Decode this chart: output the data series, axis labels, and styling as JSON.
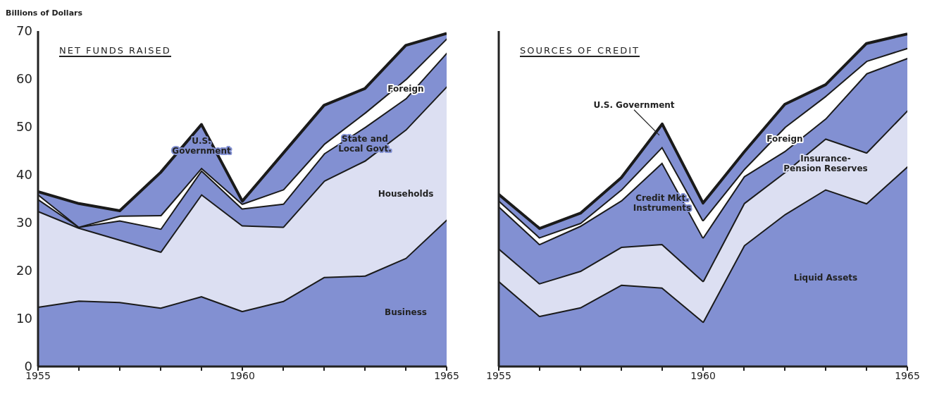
{
  "chart_data": [
    {
      "type": "area",
      "stacked": true,
      "title": "NET FUNDS RAISED",
      "ylabel": "Billions of Dollars",
      "x": [
        1955,
        1956,
        1957,
        1958,
        1959,
        1960,
        1961,
        1962,
        1963,
        1964,
        1965
      ],
      "xlim": [
        1955,
        1965
      ],
      "xticks": [
        1955,
        {
          "value": 1956,
          "label": null
        },
        {
          "value": 1957,
          "label": null
        },
        {
          "value": 1958,
          "label": null
        },
        {
          "value": 1959,
          "label": null
        },
        1960,
        {
          "value": 1961,
          "label": null
        },
        {
          "value": 1962,
          "label": null
        },
        {
          "value": 1963,
          "label": null
        },
        {
          "value": 1964,
          "label": null
        },
        1965
      ],
      "ylim": [
        0,
        70
      ],
      "yticks": [
        0,
        10,
        20,
        30,
        40,
        50,
        60,
        70
      ],
      "series": [
        {
          "name": "Business",
          "color": "#8290d2",
          "values": [
            12.5,
            13.8,
            13.5,
            12.3,
            14.7,
            11.6,
            13.7,
            18.7,
            19.0,
            22.7,
            30.7
          ]
        },
        {
          "name": "Households",
          "color": "#dcdff2",
          "values": [
            20,
            15.2,
            13,
            11.7,
            21.3,
            17.9,
            15.5,
            20.1,
            24,
            26.8,
            27.8
          ]
        },
        {
          "name": "State and Local Govt.",
          "color": "#8290d2",
          "values": [
            2.5,
            0.2,
            4,
            4.8,
            5,
            3.5,
            4.8,
            5.7,
            7,
            6.5,
            7
          ]
        },
        {
          "name": "Foreign",
          "color": "#ffffff",
          "values": [
            1,
            0,
            1,
            2.8,
            0.5,
            1,
            3,
            2,
            3,
            4,
            3
          ]
        },
        {
          "name": "U.S. Government",
          "color": "#8290d2",
          "values": [
            0.5,
            4.8,
            1,
            8.9,
            9,
            0.5,
            7.5,
            8,
            5,
            7,
            1
          ]
        }
      ]
    },
    {
      "type": "area",
      "stacked": true,
      "title": "SOURCES OF CREDIT",
      "tick_labels": "x",
      "x": [
        1955,
        1956,
        1957,
        1958,
        1959,
        1960,
        1961,
        1962,
        1963,
        1964,
        1965
      ],
      "xlim": [
        1955,
        1965
      ],
      "xticks": [
        1955,
        {
          "value": 1956,
          "label": null
        },
        {
          "value": 1957,
          "label": null
        },
        {
          "value": 1958,
          "label": null
        },
        {
          "value": 1959,
          "label": null
        },
        1960,
        {
          "value": 1961,
          "label": null
        },
        {
          "value": 1962,
          "label": null
        },
        {
          "value": 1963,
          "label": null
        },
        {
          "value": 1964,
          "label": null
        },
        1965
      ],
      "ylim": [
        0,
        70
      ],
      "yticks": [
        0,
        10,
        20,
        30,
        40,
        50,
        60,
        70
      ],
      "series": [
        {
          "name": "Liquid Assets",
          "color": "#8290d2",
          "values": [
            17.9,
            10.6,
            12.4,
            17.1,
            16.5,
            9.4,
            25.3,
            31.8,
            37,
            34.1,
            41.8
          ]
        },
        {
          "name": "Insurance-Pension Reserves",
          "color": "#dcdff2",
          "values": [
            6.8,
            6.8,
            7.6,
            7.9,
            9.1,
            8.5,
            8.8,
            8.8,
            10.6,
            10.6,
            11.7
          ]
        },
        {
          "name": "Credit Mkt. Instruments",
          "color": "#8290d2",
          "values": [
            8.8,
            8.2,
            9.4,
            9.7,
            17,
            9.1,
            5.6,
            4.4,
            4.2,
            16.5,
            10.9
          ]
        },
        {
          "name": "Foreign",
          "color": "#ffffff",
          "values": [
            1.2,
            1.4,
            0.6,
            2.3,
            3.3,
            3.6,
            1.5,
            5,
            4.7,
            2.6,
            2.1
          ]
        },
        {
          "name": "U.S. Government",
          "color": "#8290d2",
          "values": [
            1.2,
            1.8,
            2,
            2.4,
            4.7,
            3.5,
            3.5,
            4.7,
            2.3,
            3.6,
            2.9
          ]
        }
      ]
    }
  ]
}
